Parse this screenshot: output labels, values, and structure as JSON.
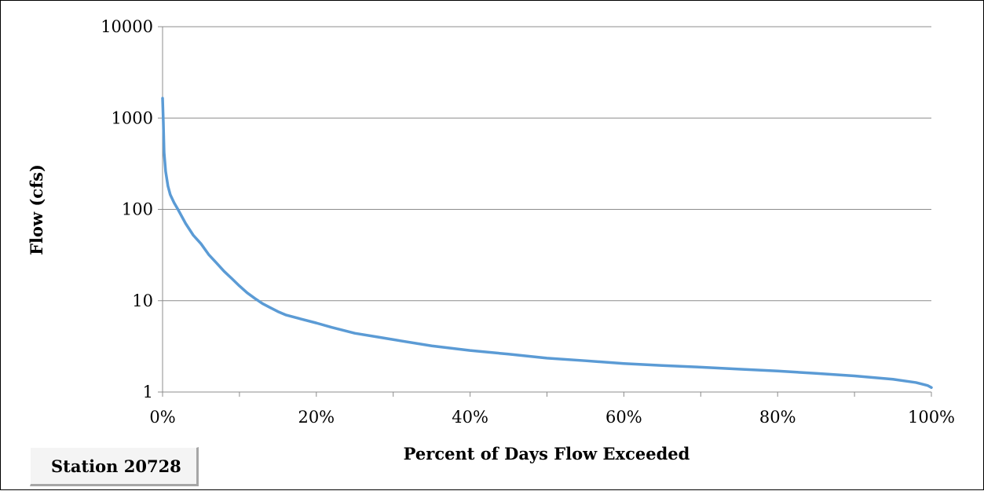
{
  "station_label": "Station 20728",
  "colors": {
    "series": "#5b9bd5",
    "grid": "#8c8c8c",
    "axis": "#8c8c8c",
    "text": "#000000"
  },
  "chart_data": {
    "type": "line",
    "title": "",
    "xlabel": "Percent of Days Flow Exceeded",
    "ylabel": "Flow (cfs)",
    "y_scale": "log",
    "xlim": [
      0,
      100
    ],
    "ylim": [
      1,
      10000
    ],
    "x_tick_labels": [
      "0%",
      "20%",
      "40%",
      "60%",
      "80%",
      "100%"
    ],
    "y_tick_labels": [
      "1",
      "10",
      "100",
      "1000",
      "10000"
    ],
    "grid": "horizontal",
    "legend": "none",
    "series": [
      {
        "x": [
          0,
          0.1,
          0.2,
          0.4,
          0.7,
          1,
          1.5,
          2,
          3,
          4,
          5,
          6,
          7,
          8,
          9,
          10,
          11,
          12,
          13,
          14,
          15,
          16,
          18,
          20,
          22,
          25,
          28,
          30,
          35,
          40,
          45,
          50,
          55,
          60,
          65,
          70,
          75,
          80,
          85,
          90,
          95,
          98,
          99.5,
          100
        ],
        "y": [
          1650,
          900,
          420,
          260,
          180,
          145,
          118,
          100,
          70,
          52,
          42,
          32,
          26,
          21,
          17.5,
          14.5,
          12.2,
          10.6,
          9.3,
          8.4,
          7.6,
          7.0,
          6.3,
          5.7,
          5.1,
          4.4,
          4.0,
          3.75,
          3.2,
          2.85,
          2.6,
          2.35,
          2.2,
          2.05,
          1.95,
          1.87,
          1.78,
          1.7,
          1.6,
          1.5,
          1.38,
          1.27,
          1.18,
          1.12
        ]
      }
    ]
  }
}
